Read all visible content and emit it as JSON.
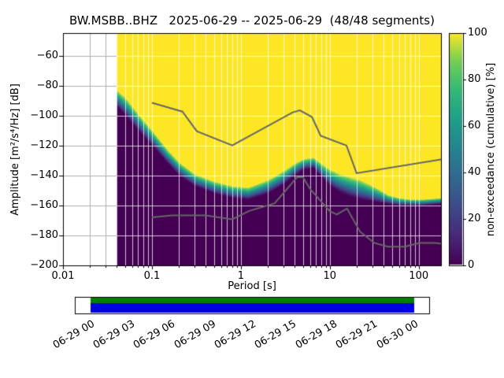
{
  "chart_data": {
    "type": "heatmap",
    "title": "BW.MSBB..BHZ   2025-06-29 -- 2025-06-29  (48/48 segments)",
    "xlabel": "Period [s]",
    "ylabel": "Amplitude [m²/s⁴/Hz] [dB]",
    "xscale": "log",
    "xlim": [
      0.01,
      178
    ],
    "ylim": [
      -200,
      -45
    ],
    "xticks": [
      0.01,
      0.1,
      1,
      10,
      100
    ],
    "xtick_labels": [
      "0.01",
      "0.1",
      "1",
      "10",
      "100"
    ],
    "yticks": [
      -60,
      -80,
      -100,
      -120,
      -140,
      -160,
      -180,
      -200
    ],
    "ytick_labels": [
      "−60",
      "−80",
      "−100",
      "−120",
      "−140",
      "−160",
      "−180",
      "−200"
    ],
    "grid": true,
    "colors": {
      "low": "#440154",
      "high": "#fde725",
      "grid_gray": "#b0b0b0",
      "grid_white": "#ffffff"
    },
    "data_start_period_s": 0.04,
    "colorbar": {
      "label": "non-exceedance (cumulative) [%]",
      "ticks": [
        0,
        20,
        40,
        60,
        80,
        100
      ],
      "tick_labels": [
        "0",
        "20",
        "40",
        "60",
        "80",
        "100"
      ],
      "cmap": "viridis"
    },
    "psd_distribution": {
      "description": "Per period [s]: dB level of 0% non-exceedance (lower edge of distribution) and 100% (upper edge); below lower edge color is dark purple, above upper edge yellow",
      "points": [
        [
          0.04,
          -94,
          -83
        ],
        [
          0.05,
          -100,
          -88
        ],
        [
          0.07,
          -110,
          -99
        ],
        [
          0.1,
          -120,
          -110
        ],
        [
          0.15,
          -132,
          -123
        ],
        [
          0.2,
          -140,
          -131
        ],
        [
          0.3,
          -147,
          -139
        ],
        [
          0.5,
          -152,
          -144
        ],
        [
          0.8,
          -155,
          -147
        ],
        [
          1.2,
          -156,
          -148
        ],
        [
          2,
          -152,
          -143
        ],
        [
          3,
          -146,
          -137
        ],
        [
          4,
          -140,
          -132
        ],
        [
          5,
          -136,
          -129
        ],
        [
          6.5,
          -135,
          -128
        ],
        [
          8,
          -141,
          -132
        ],
        [
          10,
          -147,
          -136
        ],
        [
          13,
          -151,
          -139
        ],
        [
          17,
          -154,
          -141
        ],
        [
          22,
          -156,
          -143
        ],
        [
          28,
          -157,
          -146
        ],
        [
          35,
          -158,
          -149
        ],
        [
          45,
          -159,
          -153
        ],
        [
          60,
          -160,
          -155
        ],
        [
          80,
          -160,
          -156
        ],
        [
          110,
          -160,
          -156
        ],
        [
          178,
          -159,
          -155
        ]
      ]
    },
    "noise_models": {
      "color": "#666666",
      "nhnm": [
        [
          0.1,
          -91.5
        ],
        [
          0.22,
          -97.4
        ],
        [
          0.32,
          -110.5
        ],
        [
          0.8,
          -120.0
        ],
        [
          3.8,
          -98.0
        ],
        [
          4.6,
          -96.5
        ],
        [
          6.3,
          -101.0
        ],
        [
          7.9,
          -113.5
        ],
        [
          15.4,
          -120.0
        ],
        [
          20.0,
          -138.5
        ],
        [
          178.0,
          -129.3
        ]
      ],
      "nlnm": [
        [
          0.1,
          -168.0
        ],
        [
          0.17,
          -166.7
        ],
        [
          0.4,
          -166.7
        ],
        [
          0.8,
          -169.2
        ],
        [
          1.24,
          -163.7
        ],
        [
          2.4,
          -158.6
        ],
        [
          4.3,
          -141.1
        ],
        [
          5.0,
          -141.1
        ],
        [
          6.0,
          -149.0
        ],
        [
          10.0,
          -163.8
        ],
        [
          12.0,
          -166.0
        ],
        [
          15.6,
          -162.1
        ],
        [
          21.9,
          -177.5
        ],
        [
          31.6,
          -185.0
        ],
        [
          45.0,
          -187.5
        ],
        [
          70.0,
          -187.5
        ],
        [
          101.0,
          -185.0
        ],
        [
          154.0,
          -185.0
        ],
        [
          178.0,
          -185.5
        ]
      ]
    }
  },
  "coverage": {
    "tick_labels": [
      "06-29 00",
      "06-29 03",
      "06-29 06",
      "06-29 09",
      "06-29 12",
      "06-29 15",
      "06-29 18",
      "06-29 21",
      "06-30 00"
    ],
    "bar_top_color": "#008000",
    "bar_bottom_color": "#0000dd"
  }
}
